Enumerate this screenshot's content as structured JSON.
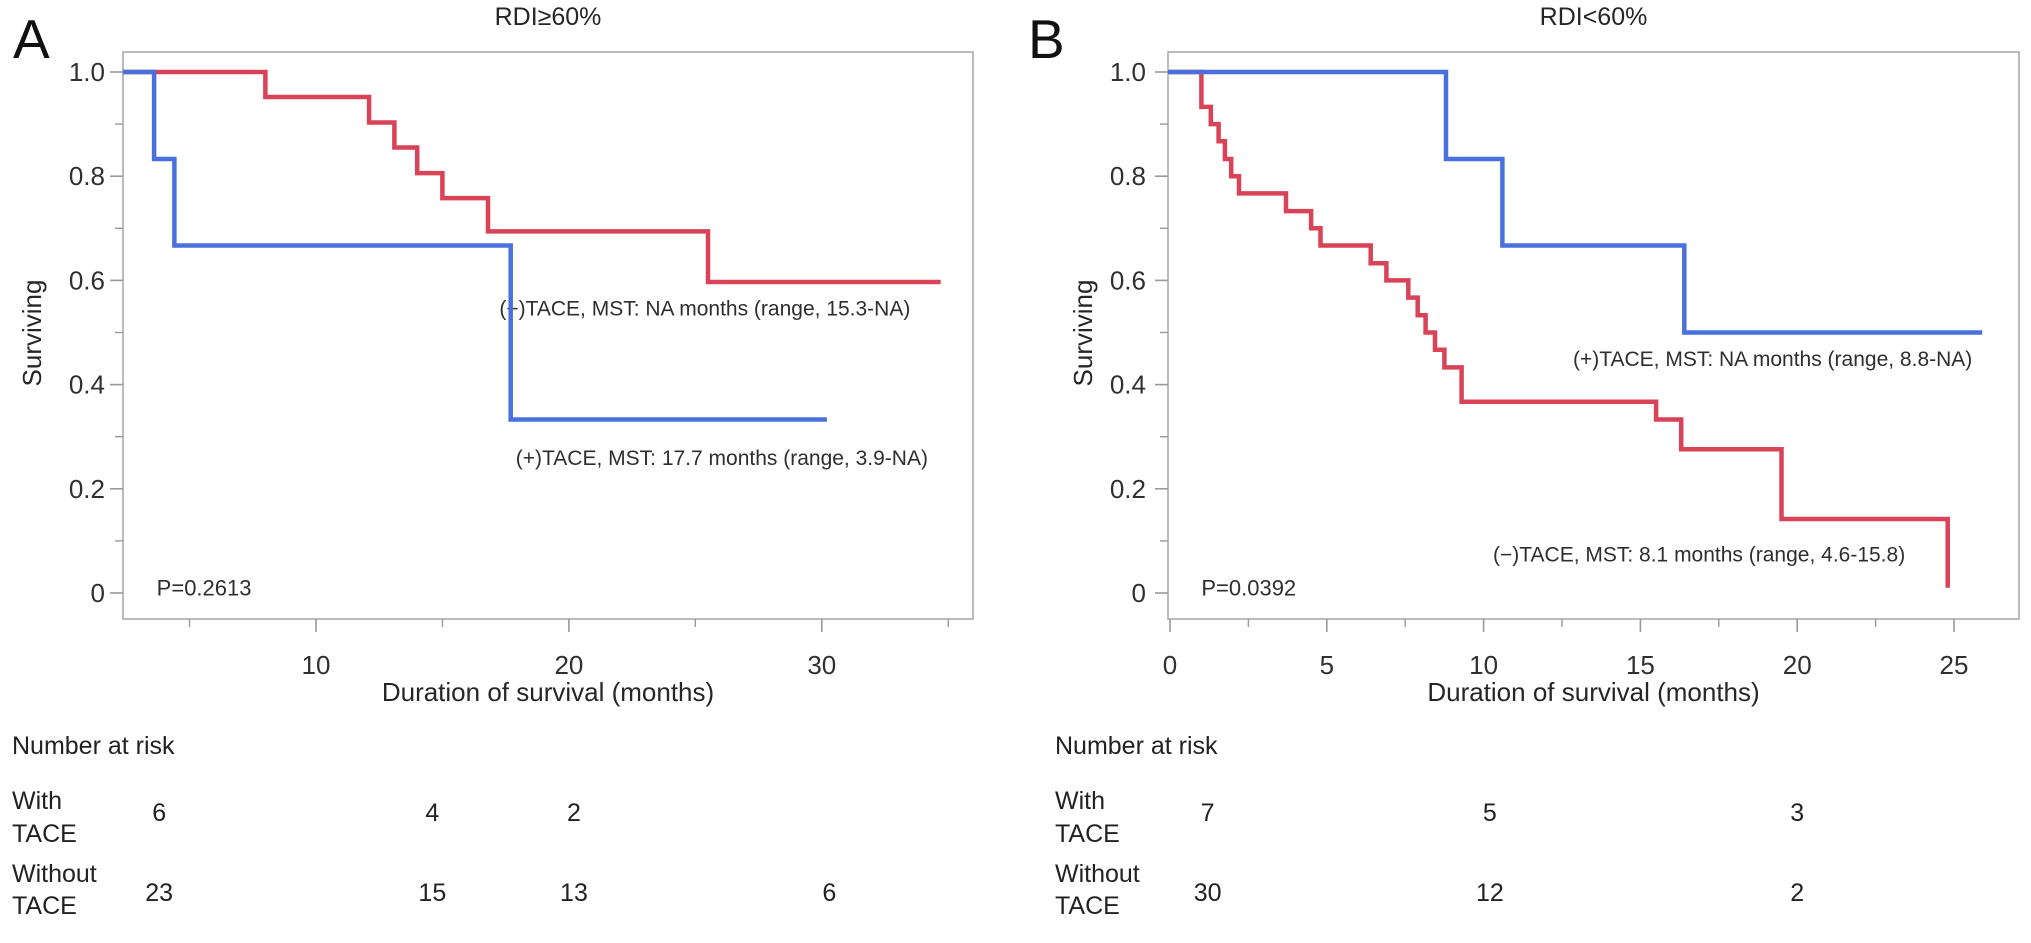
{
  "colors": {
    "red": "#d94358",
    "blue": "#4a70dd",
    "frame": "#ababab",
    "tick": "#9a9a9a",
    "text": "#262626"
  },
  "chart_data": [
    {
      "type": "line",
      "subtype": "kaplan-meier-step",
      "panel_letter": "A",
      "title": "RDI≥60%",
      "xlabel": "Duration of survival (months)",
      "ylabel": "Surviving",
      "p_value": "P=0.2613",
      "p_pos": {
        "month": 3.7,
        "value": 0.01
      },
      "xlim": [
        2.37,
        35.97
      ],
      "ylim": [
        0,
        1.0
      ],
      "x_major_ticks": [
        {
          "m": 10,
          "label": "10"
        },
        {
          "m": 20,
          "label": "20"
        },
        {
          "m": 30,
          "label": "30"
        }
      ],
      "x_minor_ticks": [
        5,
        15,
        25,
        35
      ],
      "y_major_ticks": [
        {
          "v": 1.0,
          "label": "1.0"
        },
        {
          "v": 0.8,
          "label": "0.8"
        },
        {
          "v": 0.6,
          "label": "0.6"
        },
        {
          "v": 0.4,
          "label": "0.4"
        },
        {
          "v": 0.2,
          "label": "0.2"
        },
        {
          "v": 0.0,
          "label": "0"
        }
      ],
      "y_minor_ticks": [
        0.9,
        0.7,
        0.5,
        0.3,
        0.1
      ],
      "legend_position": "annotations-inside-plot",
      "grid": false,
      "series": [
        {
          "name": "Without TACE",
          "color_key": "red",
          "annotation": "(−)TACE, MST: NA months (range, 15.3-NA)",
          "annotation_pos": {
            "month": 17.25,
            "value": 0.545
          },
          "steps": [
            [
              2.37,
              1.0
            ],
            [
              8.0,
              0.952
            ],
            [
              12.1,
              0.903
            ],
            [
              13.1,
              0.855
            ],
            [
              14.0,
              0.806
            ],
            [
              15.0,
              0.758
            ],
            [
              16.8,
              0.694
            ],
            [
              25.5,
              0.597
            ]
          ],
          "end_month": 34.7
        },
        {
          "name": "With TACE",
          "color_key": "blue",
          "annotation": "(+)TACE, MST: 17.7 months (range, 3.9-NA)",
          "annotation_pos": {
            "month": 17.9,
            "value": 0.258
          },
          "steps": [
            [
              2.37,
              1.0
            ],
            [
              3.6,
              0.833
            ],
            [
              4.4,
              0.667
            ],
            [
              17.7,
              0.333
            ]
          ],
          "end_month": 30.2
        }
      ],
      "number_at_risk": {
        "heading": "Number at risk",
        "rows": [
          {
            "label_lines": [
              "With",
              "TACE"
            ],
            "entries": [
              {
                "month": 3.8,
                "n": "6"
              },
              {
                "month": 14.6,
                "n": "4"
              },
              {
                "month": 20.2,
                "n": "2"
              }
            ]
          },
          {
            "label_lines": [
              "Without",
              "TACE"
            ],
            "entries": [
              {
                "month": 3.8,
                "n": "23"
              },
              {
                "month": 14.6,
                "n": "15"
              },
              {
                "month": 20.2,
                "n": "13"
              },
              {
                "month": 30.3,
                "n": "6"
              }
            ]
          }
        ]
      }
    },
    {
      "type": "line",
      "subtype": "kaplan-meier-step",
      "panel_letter": "B",
      "title": "RDI<60%",
      "xlabel": "Duration of survival (months)",
      "ylabel": "Surviving",
      "p_value": "P=0.0392",
      "p_pos": {
        "month": 1.0,
        "value": 0.01
      },
      "xlim": [
        -0.06,
        27.07
      ],
      "ylim": [
        0,
        1.0
      ],
      "x_major_ticks": [
        {
          "m": 0,
          "label": "0"
        },
        {
          "m": 5,
          "label": "5"
        },
        {
          "m": 10,
          "label": "10"
        },
        {
          "m": 15,
          "label": "15"
        },
        {
          "m": 20,
          "label": "20"
        },
        {
          "m": 25,
          "label": "25"
        }
      ],
      "x_minor_ticks": [
        2.5,
        7.5,
        12.5,
        17.5,
        22.5
      ],
      "y_major_ticks": [
        {
          "v": 1.0,
          "label": "1.0"
        },
        {
          "v": 0.8,
          "label": "0.8"
        },
        {
          "v": 0.6,
          "label": "0.6"
        },
        {
          "v": 0.4,
          "label": "0.4"
        },
        {
          "v": 0.2,
          "label": "0.2"
        },
        {
          "v": 0.0,
          "label": "0"
        }
      ],
      "y_minor_ticks": [
        0.9,
        0.7,
        0.5,
        0.3,
        0.1
      ],
      "legend_position": "annotations-inside-plot",
      "grid": false,
      "series": [
        {
          "name": "Without TACE",
          "color_key": "red",
          "annotation": "(−)TACE, MST: 8.1 months (range, 4.6-15.8)",
          "annotation_pos": {
            "month": 10.3,
            "value": 0.073
          },
          "steps": [
            [
              -0.06,
              1.0
            ],
            [
              1.0,
              0.933
            ],
            [
              1.3,
              0.9
            ],
            [
              1.55,
              0.867
            ],
            [
              1.75,
              0.833
            ],
            [
              1.95,
              0.8
            ],
            [
              2.2,
              0.767
            ],
            [
              3.7,
              0.733
            ],
            [
              4.5,
              0.7
            ],
            [
              4.8,
              0.667
            ],
            [
              6.4,
              0.633
            ],
            [
              6.9,
              0.6
            ],
            [
              7.6,
              0.567
            ],
            [
              7.9,
              0.533
            ],
            [
              8.15,
              0.5
            ],
            [
              8.45,
              0.467
            ],
            [
              8.75,
              0.433
            ],
            [
              9.3,
              0.367
            ],
            [
              15.5,
              0.333
            ],
            [
              16.3,
              0.276
            ],
            [
              19.5,
              0.142
            ],
            [
              24.8,
              0.01
            ]
          ],
          "end_month": 24.8
        },
        {
          "name": "With TACE",
          "color_key": "blue",
          "annotation": "(+)TACE, MST: NA months (range, 8.8-NA)",
          "annotation_pos": {
            "month": 12.85,
            "value": 0.448
          },
          "steps": [
            [
              -0.06,
              1.0
            ],
            [
              8.8,
              0.833
            ],
            [
              10.6,
              0.667
            ],
            [
              16.4,
              0.5
            ]
          ],
          "end_month": 25.9
        }
      ],
      "number_at_risk": {
        "heading": "Number at risk",
        "rows": [
          {
            "label_lines": [
              "With",
              "TACE"
            ],
            "entries": [
              {
                "month": 1.2,
                "n": "7"
              },
              {
                "month": 10.2,
                "n": "5"
              },
              {
                "month": 20.0,
                "n": "3"
              }
            ]
          },
          {
            "label_lines": [
              "Without",
              "TACE"
            ],
            "entries": [
              {
                "month": 1.2,
                "n": "30"
              },
              {
                "month": 10.2,
                "n": "12"
              },
              {
                "month": 20.0,
                "n": "2"
              }
            ]
          }
        ]
      }
    }
  ]
}
